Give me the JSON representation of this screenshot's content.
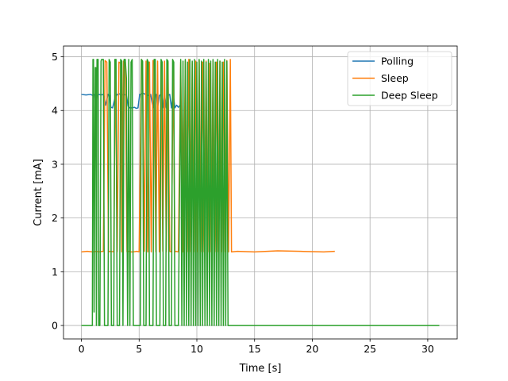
{
  "chart_data": {
    "type": "line",
    "xlabel": "Time [s]",
    "ylabel": "Current [mA]",
    "xlim": [
      -1.55,
      32.55
    ],
    "ylim": [
      -0.25,
      5.2
    ],
    "xticks": [
      0,
      5,
      10,
      15,
      20,
      25,
      30
    ],
    "yticks": [
      0,
      1,
      2,
      3,
      4,
      5
    ],
    "grid": true,
    "legend": "upper right",
    "series": [
      {
        "name": "Polling",
        "color": "#1f77b4",
        "x": [
          0,
          0.4,
          0.8,
          1.0,
          1.15,
          1.25,
          1.35,
          1.5,
          1.7,
          1.9,
          2.1,
          2.3,
          2.45,
          2.55,
          2.7,
          2.9,
          3.1,
          3.3,
          3.5,
          3.7,
          3.9,
          4.05,
          4.2,
          4.4,
          4.6,
          4.75,
          4.9,
          5.05,
          5.2,
          5.4,
          5.6,
          5.8,
          6.0,
          6.2,
          6.35,
          6.5,
          6.6,
          6.75,
          6.9,
          7.05,
          7.2,
          7.35,
          7.5,
          7.65,
          7.8,
          7.95,
          8.1,
          8.25,
          8.4,
          8.55,
          8.65
        ],
        "y": [
          4.3,
          4.29,
          4.3,
          4.28,
          4.3,
          4.05,
          4.28,
          4.3,
          4.29,
          4.3,
          4.1,
          4.3,
          4.28,
          4.06,
          4.05,
          4.22,
          4.3,
          4.31,
          4.29,
          4.3,
          4.28,
          4.08,
          4.05,
          4.05,
          4.06,
          4.04,
          4.05,
          4.3,
          4.31,
          4.32,
          4.29,
          4.28,
          4.3,
          4.05,
          4.28,
          4.3,
          4.05,
          4.28,
          4.3,
          4.05,
          4.3,
          4.05,
          4.28,
          4.3,
          4.05,
          4.3,
          4.05,
          4.1,
          4.06,
          4.1,
          4.05
        ]
      },
      {
        "name": "Sleep",
        "color": "#ff7f0e",
        "x": [
          0,
          0.5,
          1.0,
          1.3,
          1.5,
          1.9,
          2.05,
          2.2,
          2.35,
          2.5,
          2.8,
          2.95,
          3.1,
          3.25,
          3.4,
          3.5,
          3.65,
          3.8,
          3.95,
          4.1,
          4.25,
          4.5,
          4.8,
          5.0,
          5.2,
          5.3,
          5.45,
          5.6,
          5.75,
          5.9,
          6.05,
          6.2,
          6.3,
          6.45,
          6.6,
          6.75,
          6.9,
          7.05,
          7.2,
          7.35,
          7.5,
          7.65,
          7.8,
          7.95,
          8.1,
          8.2,
          8.4,
          8.6,
          8.8,
          9.0,
          9.15,
          9.3,
          9.45,
          9.6,
          9.75,
          9.9,
          10.05,
          10.2,
          10.35,
          10.5,
          10.65,
          10.8,
          10.95,
          11.1,
          11.25,
          11.4,
          11.55,
          11.7,
          11.85,
          12.0,
          12.15,
          12.3,
          12.45,
          12.6,
          12.75,
          12.9,
          13.0,
          13.5,
          15.0,
          17.0,
          19.0,
          21.0,
          21.95
        ],
        "y": [
          1.37,
          1.38,
          1.37,
          1.38,
          1.37,
          1.38,
          4.93,
          4.9,
          1.37,
          1.38,
          1.37,
          4.92,
          1.37,
          4.9,
          4.88,
          1.37,
          4.92,
          4.88,
          1.37,
          1.38,
          1.37,
          1.37,
          1.38,
          1.37,
          4.95,
          4.9,
          1.38,
          4.92,
          1.37,
          4.9,
          1.37,
          4.93,
          4.9,
          1.37,
          4.92,
          1.37,
          4.9,
          1.38,
          4.92,
          1.37,
          4.9,
          1.38,
          1.37,
          4.92,
          1.37,
          1.38,
          1.37,
          4.9,
          1.37,
          4.92,
          1.37,
          4.95,
          1.37,
          4.9,
          1.37,
          4.92,
          1.37,
          4.93,
          1.37,
          4.9,
          1.37,
          4.92,
          1.37,
          4.88,
          1.37,
          4.92,
          1.37,
          4.9,
          1.37,
          4.92,
          1.37,
          4.9,
          1.37,
          4.93,
          1.37,
          4.95,
          1.37,
          1.38,
          1.37,
          1.39,
          1.38,
          1.37,
          1.38
        ]
      },
      {
        "name": "Deep Sleep",
        "color": "#2ca02c",
        "x": [
          0,
          0.6,
          0.95,
          1.0,
          1.05,
          1.1,
          1.2,
          1.25,
          1.3,
          1.35,
          1.45,
          1.5,
          1.6,
          1.7,
          1.75,
          1.9,
          2.0,
          2.3,
          2.4,
          2.5,
          2.6,
          2.8,
          2.9,
          3.0,
          3.1,
          3.3,
          3.4,
          3.5,
          3.6,
          3.7,
          3.8,
          3.9,
          4.0,
          4.1,
          4.2,
          4.3,
          4.4,
          4.5,
          4.6,
          5.1,
          5.2,
          5.3,
          5.4,
          5.6,
          5.7,
          5.8,
          5.9,
          6.2,
          6.3,
          6.4,
          6.5,
          6.8,
          6.9,
          7.0,
          7.1,
          7.3,
          7.4,
          7.5,
          7.6,
          7.8,
          7.9,
          8.0,
          8.1,
          8.4,
          8.6,
          8.7,
          8.8,
          8.9,
          9.0,
          9.1,
          9.2,
          9.3,
          9.4,
          9.5,
          9.6,
          9.7,
          9.8,
          9.9,
          10.0,
          10.1,
          10.2,
          10.3,
          10.4,
          10.5,
          10.6,
          10.7,
          10.8,
          10.9,
          11.0,
          11.1,
          11.2,
          11.3,
          11.4,
          11.5,
          11.6,
          11.7,
          11.8,
          11.9,
          12.0,
          12.1,
          12.2,
          12.3,
          12.4,
          12.5,
          12.6,
          12.7,
          13.0,
          15.0,
          20.0,
          25.0,
          31.0
        ],
        "y": [
          0,
          0,
          0,
          4.95,
          4.95,
          0.25,
          4.8,
          4.8,
          0,
          4.95,
          4.95,
          0,
          0,
          4.92,
          4.95,
          4.95,
          0,
          0,
          4.95,
          4.9,
          0,
          0,
          4.95,
          4.95,
          0,
          0,
          4.95,
          4.92,
          0,
          4.95,
          4.95,
          4.6,
          0,
          4.95,
          0,
          4.9,
          4.95,
          0,
          0,
          0,
          4.95,
          4.92,
          0,
          0,
          4.95,
          4.9,
          0,
          0,
          4.95,
          4.95,
          0,
          0,
          4.95,
          4.9,
          0,
          0,
          4.95,
          4.92,
          0,
          0,
          4.95,
          4.9,
          0,
          0,
          4.95,
          0,
          4.92,
          0,
          4.95,
          0,
          4.9,
          0,
          4.95,
          0,
          4.92,
          0,
          4.95,
          0,
          4.9,
          0,
          4.95,
          0,
          4.92,
          0,
          4.95,
          0,
          4.9,
          0,
          4.95,
          0,
          4.92,
          0,
          4.95,
          0,
          4.9,
          0,
          4.95,
          0,
          4.92,
          0,
          4.9,
          0,
          4.95,
          0,
          4.92,
          0,
          0,
          0,
          0,
          0,
          0
        ]
      }
    ]
  }
}
